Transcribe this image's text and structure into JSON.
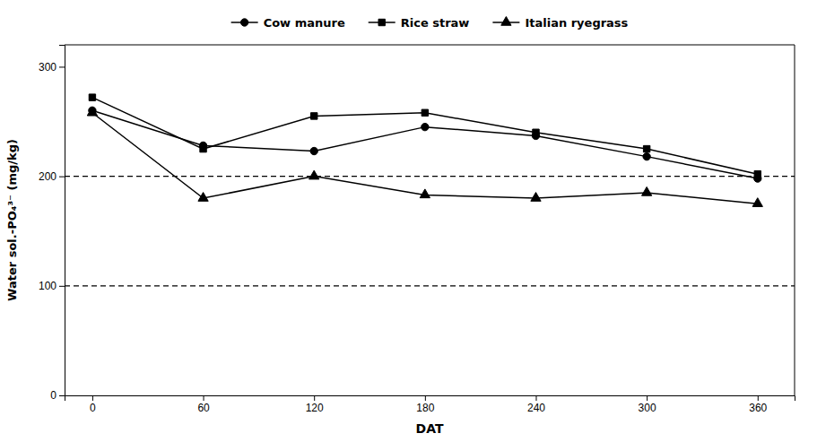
{
  "chart_data": {
    "type": "line",
    "x": [
      0,
      60,
      120,
      180,
      240,
      300,
      360
    ],
    "series": [
      {
        "name": "Cow manure",
        "color": "#000000",
        "marker": "circle",
        "line_style": "solid",
        "values": [
          260,
          228,
          223,
          245,
          237,
          218,
          198
        ]
      },
      {
        "name": "Rice straw",
        "color": "#000000",
        "marker": "square",
        "line_style": "solid",
        "values": [
          272,
          225,
          255,
          258,
          240,
          225,
          202
        ]
      },
      {
        "name": "Italian ryegrass",
        "color": "#000000",
        "marker": "triangle",
        "line_style": "solid",
        "values": [
          258,
          180,
          200,
          183,
          180,
          185,
          175
        ]
      }
    ],
    "hlines": [
      200,
      100
    ],
    "xlim": [
      -15,
      380
    ],
    "ylim": [
      0,
      320
    ],
    "xticks": [
      0,
      60,
      120,
      180,
      240,
      300,
      360
    ],
    "yticks": [
      0,
      100,
      200,
      300
    ],
    "xlabel": "DAT",
    "ylabel": "Water sol.-PO₄³⁻ (mg/kg)",
    "legend": "top",
    "grid": false
  }
}
